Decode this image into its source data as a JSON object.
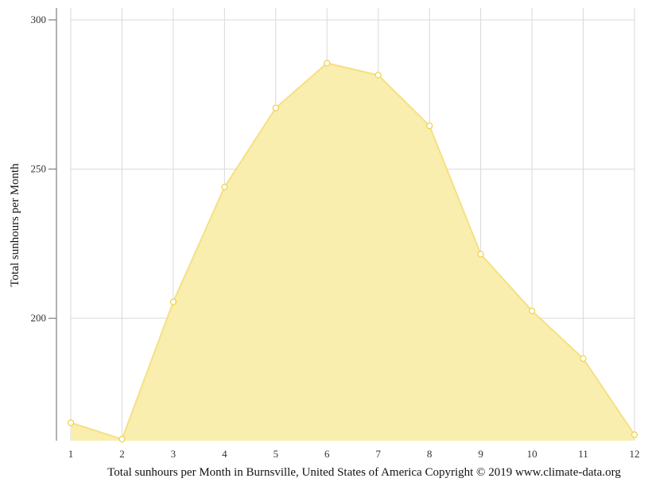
{
  "chart_data": {
    "type": "area",
    "x": [
      1,
      2,
      3,
      4,
      5,
      6,
      7,
      8,
      9,
      10,
      11,
      12
    ],
    "series": [
      {
        "values": [
          165,
          159.5,
          205.5,
          244,
          270.5,
          285.5,
          281.5,
          264.5,
          221.5,
          202.5,
          186.5,
          161
        ]
      }
    ],
    "xlabel": "",
    "ylabel": "Total sunhours per Month",
    "caption": "Total sunhours per Month in Burnsville, United States of America Copyright © 2019 www.climate-data.org",
    "yticks": [
      200,
      250,
      300
    ],
    "ylim": [
      159,
      304
    ],
    "xlim": [
      1,
      12
    ],
    "grid": true,
    "colors": {
      "fill": "#f9eeae",
      "line": "#f5e083",
      "marker_stroke": "#eed24a",
      "marker_fill": "#ffffff",
      "grid": "#d9d9d9",
      "axis": "#666666"
    }
  }
}
